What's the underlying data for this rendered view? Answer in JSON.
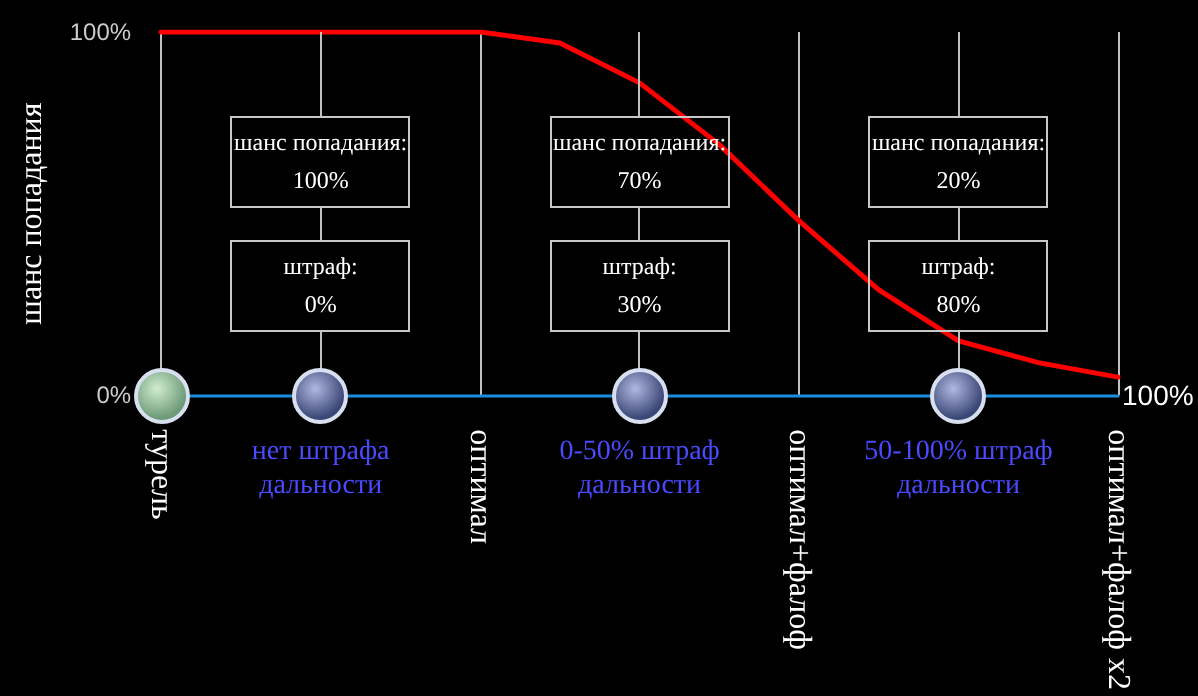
{
  "chart_data": {
    "type": "line",
    "ylabel": "шанс попадания",
    "categories": [
      "турель",
      null,
      null,
      null,
      "оптимал",
      null,
      null,
      null,
      "оптимал+фалоф",
      null,
      null,
      null,
      "оптимал+фалоф x2"
    ],
    "series": [
      {
        "color": "#ff0000",
        "values": [
          100,
          100,
          100,
          100,
          100,
          97,
          86,
          69,
          48,
          29,
          15,
          9,
          5
        ]
      }
    ],
    "ylim": [
      0,
      100
    ],
    "yticks": [
      {
        "value": 0,
        "label": "0%"
      },
      {
        "value": 100,
        "label": "100%"
      }
    ],
    "grid": "x",
    "marker": "none",
    "line_style": "solid",
    "annotations": [
      "шанс попадания:\n100%",
      "штраф:\n0%",
      "нет штрафа\nдальности",
      "шанс попадания:\n70%",
      "штраф:\n30%",
      "0-50% штраф\nдальности",
      "шанс попадания:\n20%",
      "штраф:\n80%",
      "50-100% штраф\nдальности",
      "100%"
    ]
  }
}
